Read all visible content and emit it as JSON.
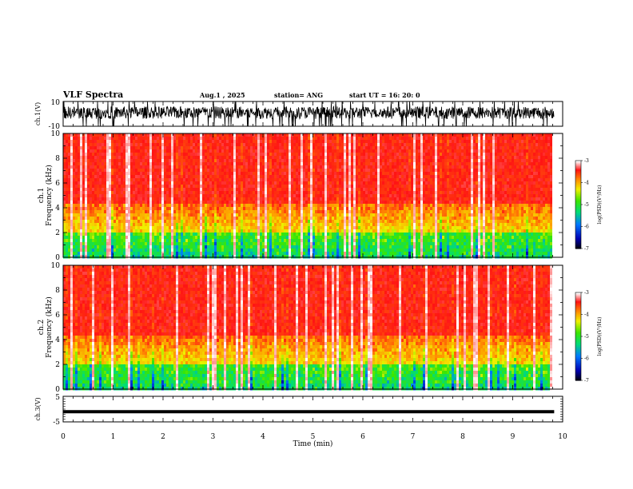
{
  "header": {
    "title": "VLF Spectra",
    "date": "Aug.1 , 2025",
    "station": "station= ANG",
    "start": "start UT = 16: 20: 0"
  },
  "chart_data": [
    {
      "type": "line",
      "panel": "waveform-ch1",
      "ylabel": "ch.1(V)",
      "ylim": [
        -10,
        10
      ],
      "yticks": [
        "10",
        "-10"
      ],
      "xlim": [
        0,
        9.83
      ],
      "description_values": "dense oscillation roughly between -4 and +6 V with bursts to ±10 V"
    },
    {
      "type": "heatmap",
      "panel": "spectrogram-ch1",
      "ylabel_top": "ch.1",
      "ylabel": "Frequency (kHz)",
      "ylim": [
        0,
        10
      ],
      "yticks": [
        "0",
        "2",
        "4",
        "6",
        "8",
        "10"
      ],
      "xlim": [
        0,
        9.83
      ],
      "colorbar": {
        "label": "log(PSD)(V²/Hz)",
        "range": [
          -7,
          -3
        ],
        "ticks": [
          "-3",
          "-4",
          "-5",
          "-6",
          "-7"
        ]
      }
    },
    {
      "type": "heatmap",
      "panel": "spectrogram-ch2",
      "ylabel_top": "ch.2",
      "ylabel": "Frequency (kHz)",
      "ylim": [
        0,
        10
      ],
      "yticks": [
        "0",
        "2",
        "4",
        "6",
        "8",
        "10"
      ],
      "xlim": [
        0,
        9.83
      ],
      "colorbar": {
        "label": "log(PSD)(V²/Hz)",
        "range": [
          -7,
          -3
        ],
        "ticks": [
          "-3",
          "-4",
          "-5",
          "-6",
          "-7"
        ]
      }
    },
    {
      "type": "line",
      "panel": "waveform-ch3",
      "ylabel": "ch.3(V)",
      "ylim": [
        -5,
        5
      ],
      "yticks": [
        "5",
        "-5"
      ],
      "x": [
        0,
        9.83
      ],
      "y": [
        -1,
        -1
      ],
      "xlim": [
        0,
        10
      ]
    }
  ],
  "xaxis": {
    "label": "Time (min)",
    "ticks": [
      "0",
      "1",
      "2",
      "3",
      "4",
      "5",
      "6",
      "7",
      "8",
      "9",
      "10"
    ],
    "range": [
      0,
      10
    ]
  },
  "colors": {
    "axes": "#000000",
    "spectrum_high": "#ff0000",
    "spectrum_low": "#000000"
  }
}
